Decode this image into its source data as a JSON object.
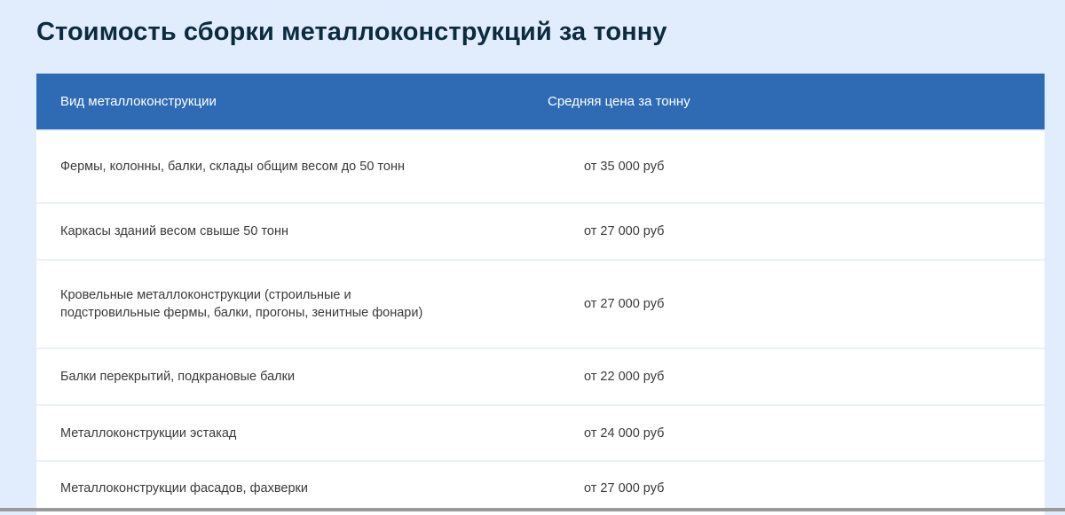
{
  "title": "Стоимость сборки металлоконструкций за тонну",
  "table": {
    "headers": [
      "Вид металлоконструкции",
      "Средняя цена за тонну"
    ],
    "rows": [
      {
        "type": "Фермы, колонны, балки, склады общим весом до 50 тонн",
        "price": "от 35 000 руб"
      },
      {
        "type": "Каркасы зданий весом свыше 50 тонн",
        "price": "от 27 000 руб"
      },
      {
        "type": "Кровельные металлоконструкции (строильные и подстровильные фермы, балки, прогоны, зенитные фонари)",
        "price": "от 27 000 руб"
      },
      {
        "type": "Балки перекрытий, подкрановые балки",
        "price": "от 22 000 руб"
      },
      {
        "type": "Металлоконструкции эстакад",
        "price": "от 24 000 руб"
      },
      {
        "type": "Металлоконструкции фасадов, фахверки",
        "price": "от 27 000 руб"
      }
    ]
  },
  "colors": {
    "header_bg": "#2f6bb5",
    "page_bg": "#e1edfd",
    "title": "#0d2b3e"
  }
}
